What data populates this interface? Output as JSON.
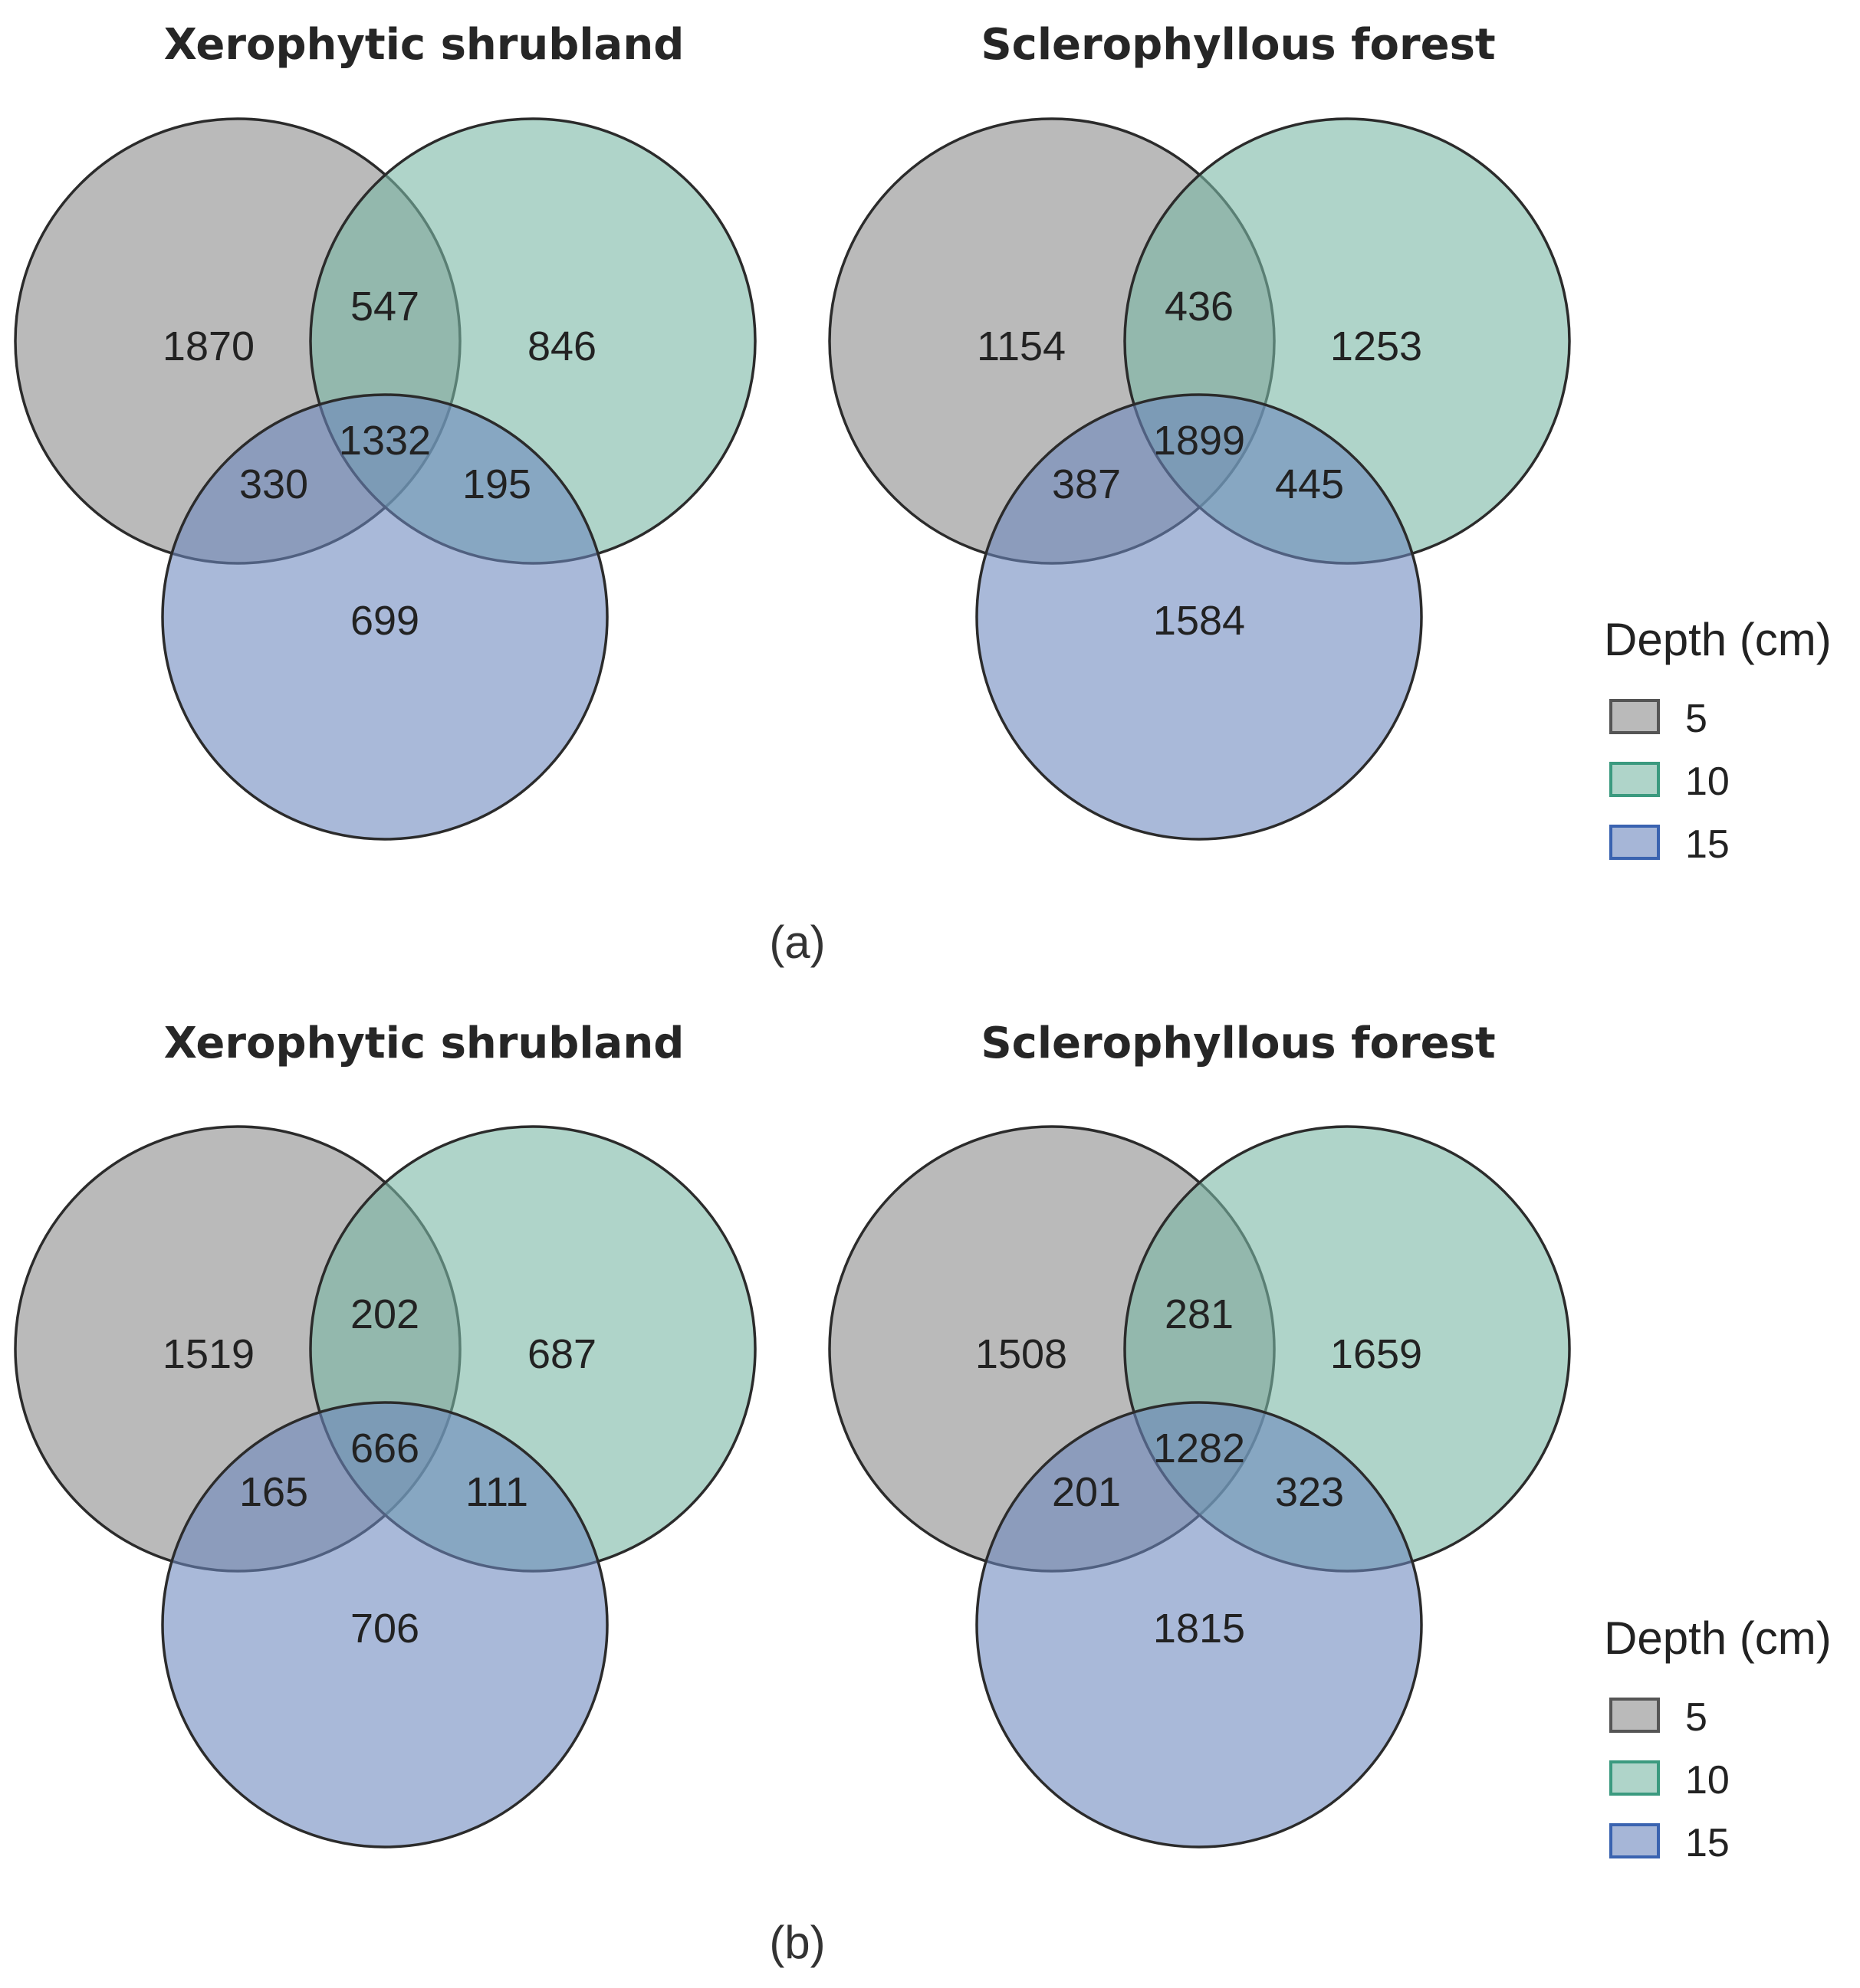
{
  "colors": {
    "depth_5": "#8c8c8c",
    "depth_10": "#7ab8a5",
    "depth_15": "#6a86bd",
    "swatch_border_5": "#555555",
    "swatch_border_10": "#3b9a7f",
    "swatch_border_15": "#3a63b0",
    "outline": "#2b2b2b"
  },
  "legend": {
    "title": "Depth (cm)",
    "items": [
      {
        "label": "5"
      },
      {
        "label": "10"
      },
      {
        "label": "15"
      }
    ]
  },
  "panels": [
    {
      "label": "(a)",
      "venns": [
        {
          "title": "Xerophytic shrubland",
          "counts": {
            "only_5": "1870",
            "only_10": "846",
            "only_15": "699",
            "ab": "547",
            "ac": "330",
            "bc": "195",
            "abc": "1332"
          }
        },
        {
          "title": "Sclerophyllous forest",
          "counts": {
            "only_5": "1154",
            "only_10": "1253",
            "only_15": "1584",
            "ab": "436",
            "ac": "387",
            "bc": "445",
            "abc": "1899"
          }
        }
      ]
    },
    {
      "label": "(b)",
      "venns": [
        {
          "title": "Xerophytic shrubland",
          "counts": {
            "only_5": "1519",
            "only_10": "687",
            "only_15": "706",
            "ab": "202",
            "ac": "165",
            "bc": "111",
            "abc": "666"
          }
        },
        {
          "title": "Sclerophyllous forest",
          "counts": {
            "only_5": "1508",
            "only_10": "1659",
            "only_15": "1815",
            "ab": "281",
            "ac": "201",
            "bc": "323",
            "abc": "1282"
          }
        }
      ]
    }
  ]
}
